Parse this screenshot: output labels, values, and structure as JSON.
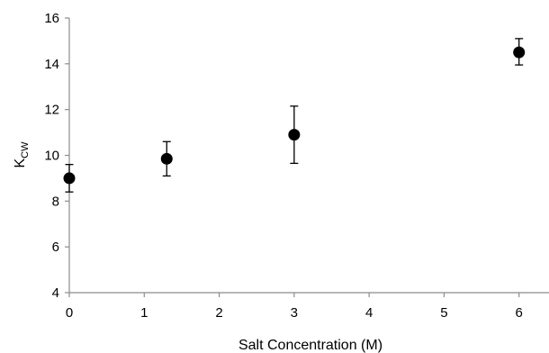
{
  "chart_data": {
    "type": "scatter",
    "title": "",
    "xlabel": "Salt Concentration (M)",
    "ylabel": "K",
    "ylabel_subscript": "CW",
    "xlim": [
      0,
      6.4
    ],
    "ylim": [
      4,
      16
    ],
    "x_ticks": [
      "0",
      "1",
      "2",
      "3",
      "4",
      "5",
      "6"
    ],
    "y_ticks": [
      "4",
      "6",
      "8",
      "10",
      "12",
      "14",
      "16"
    ],
    "grid": false,
    "marker_color": "#000000",
    "series": [
      {
        "points": [
          {
            "x": 0,
            "y": 9.0,
            "err_low": 8.4,
            "err_high": 9.6
          },
          {
            "x": 1.3,
            "y": 9.85,
            "err_low": 9.1,
            "err_high": 10.6
          },
          {
            "x": 3.0,
            "y": 10.9,
            "err_low": 9.65,
            "err_high": 12.15
          },
          {
            "x": 6.0,
            "y": 14.5,
            "err_low": 13.95,
            "err_high": 15.1
          }
        ]
      }
    ]
  }
}
